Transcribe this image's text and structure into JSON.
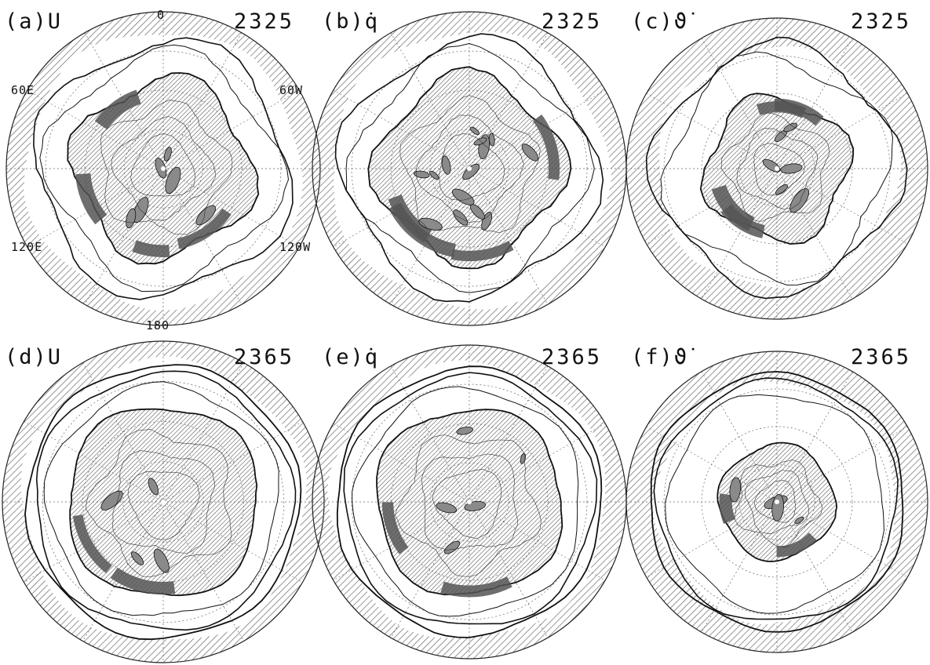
{
  "colors": {
    "background": "#ffffff",
    "hatch": "#6a6a6a",
    "contour": "#111111",
    "shade_dark": "#555555",
    "shade_mid": "#8a8a8a",
    "gridline": "#666666"
  },
  "panels": [
    {
      "id": "a",
      "label": "(a)U",
      "year": "2325",
      "variable": "U",
      "inner_extent": 0.56,
      "style": "u_early"
    },
    {
      "id": "b",
      "label": "(b)q̇",
      "year": "2325",
      "variable": "q-dot",
      "inner_extent": 0.58,
      "style": "q_early"
    },
    {
      "id": "c",
      "label": "(c)ϑ̇",
      "year": "2325",
      "variable": "theta-dot",
      "inner_extent": 0.47,
      "style": "t_early"
    },
    {
      "id": "d",
      "label": "(d)U",
      "year": "2365",
      "variable": "U",
      "inner_extent": 0.6,
      "style": "u_late"
    },
    {
      "id": "e",
      "label": "(e)q̇",
      "year": "2365",
      "variable": "q-dot",
      "inner_extent": 0.6,
      "style": "q_late"
    },
    {
      "id": "f",
      "label": "(f)ϑ̇",
      "year": "2365",
      "variable": "theta-dot",
      "inner_extent": 0.38,
      "style": "t_late"
    }
  ],
  "longitude_labels": {
    "top": "0",
    "upper_left": "60E",
    "upper_right": "60W",
    "lower_left": "120E",
    "lower_right": "120W",
    "bottom": "180"
  },
  "icons": {
    "panel_map": "polar-stereographic-map-icon"
  }
}
